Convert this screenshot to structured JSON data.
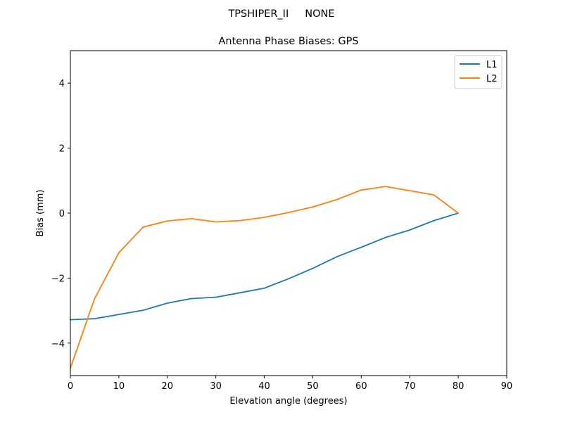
{
  "suptitle": "TPSHIPER_II     NONE",
  "chart_data": {
    "type": "line",
    "title": "Antenna Phase Biases: GPS",
    "xlabel": "Elevation angle (degrees)",
    "ylabel": "Bias (mm)",
    "xlim": [
      0,
      90
    ],
    "ylim": [
      -5,
      5
    ],
    "xticks": [
      0,
      10,
      20,
      30,
      40,
      50,
      60,
      70,
      80,
      90
    ],
    "yticks": [
      -4,
      -2,
      0,
      2,
      4
    ],
    "xtick_labels": [
      "0",
      "10",
      "20",
      "30",
      "40",
      "50",
      "60",
      "70",
      "80",
      "90"
    ],
    "ytick_labels": [
      "−4",
      "−2",
      "0",
      "2",
      "4"
    ],
    "grid": false,
    "legend_position": "top-right",
    "x": [
      0,
      5,
      10,
      15,
      20,
      25,
      30,
      35,
      40,
      45,
      50,
      55,
      60,
      65,
      70,
      75,
      80
    ],
    "series": [
      {
        "name": "L1",
        "color": "#1f77b4",
        "values": [
          -3.28,
          -3.25,
          -3.12,
          -2.99,
          -2.77,
          -2.63,
          -2.59,
          -2.45,
          -2.31,
          -2.02,
          -1.7,
          -1.34,
          -1.05,
          -0.75,
          -0.52,
          -0.23,
          0.0
        ]
      },
      {
        "name": "L2",
        "color": "#ff7f0e",
        "values": [
          -4.77,
          -2.63,
          -1.22,
          -0.43,
          -0.24,
          -0.17,
          -0.27,
          -0.23,
          -0.13,
          0.02,
          0.19,
          0.42,
          0.71,
          0.82,
          0.69,
          0.56,
          0.0
        ]
      }
    ]
  }
}
